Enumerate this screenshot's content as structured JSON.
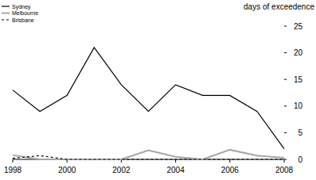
{
  "chart_data": {
    "type": "line",
    "y_label": "days of exceedence",
    "x": [
      1998,
      1999,
      2000,
      2001,
      2002,
      2003,
      2004,
      2005,
      2006,
      2007,
      2008
    ],
    "series": [
      {
        "name": "Sydney",
        "color": "#000000",
        "line_style": "solid",
        "values": [
          13,
          9,
          12,
          21,
          14,
          9,
          14,
          12,
          12,
          9,
          2
        ]
      },
      {
        "name": "Melbourne",
        "color": "#a6a6a6",
        "line_style": "solid",
        "values": [
          0.8,
          0,
          0,
          0,
          0,
          1.7,
          0.5,
          0,
          1.8,
          0.7,
          0.3
        ]
      },
      {
        "name": "Brisbane",
        "color": "#000000",
        "line_style": "dashed",
        "values": [
          0.2,
          0.7,
          0,
          0,
          0,
          0,
          0,
          0,
          0,
          0,
          0
        ]
      }
    ],
    "xlim": [
      1998,
      2008
    ],
    "xticks": [
      1998,
      2000,
      2002,
      2004,
      2006,
      2008
    ],
    "ylim": [
      0,
      25
    ],
    "yticks": [
      0,
      5,
      10,
      15,
      20,
      25
    ],
    "grid": false,
    "legend": "top-left"
  }
}
